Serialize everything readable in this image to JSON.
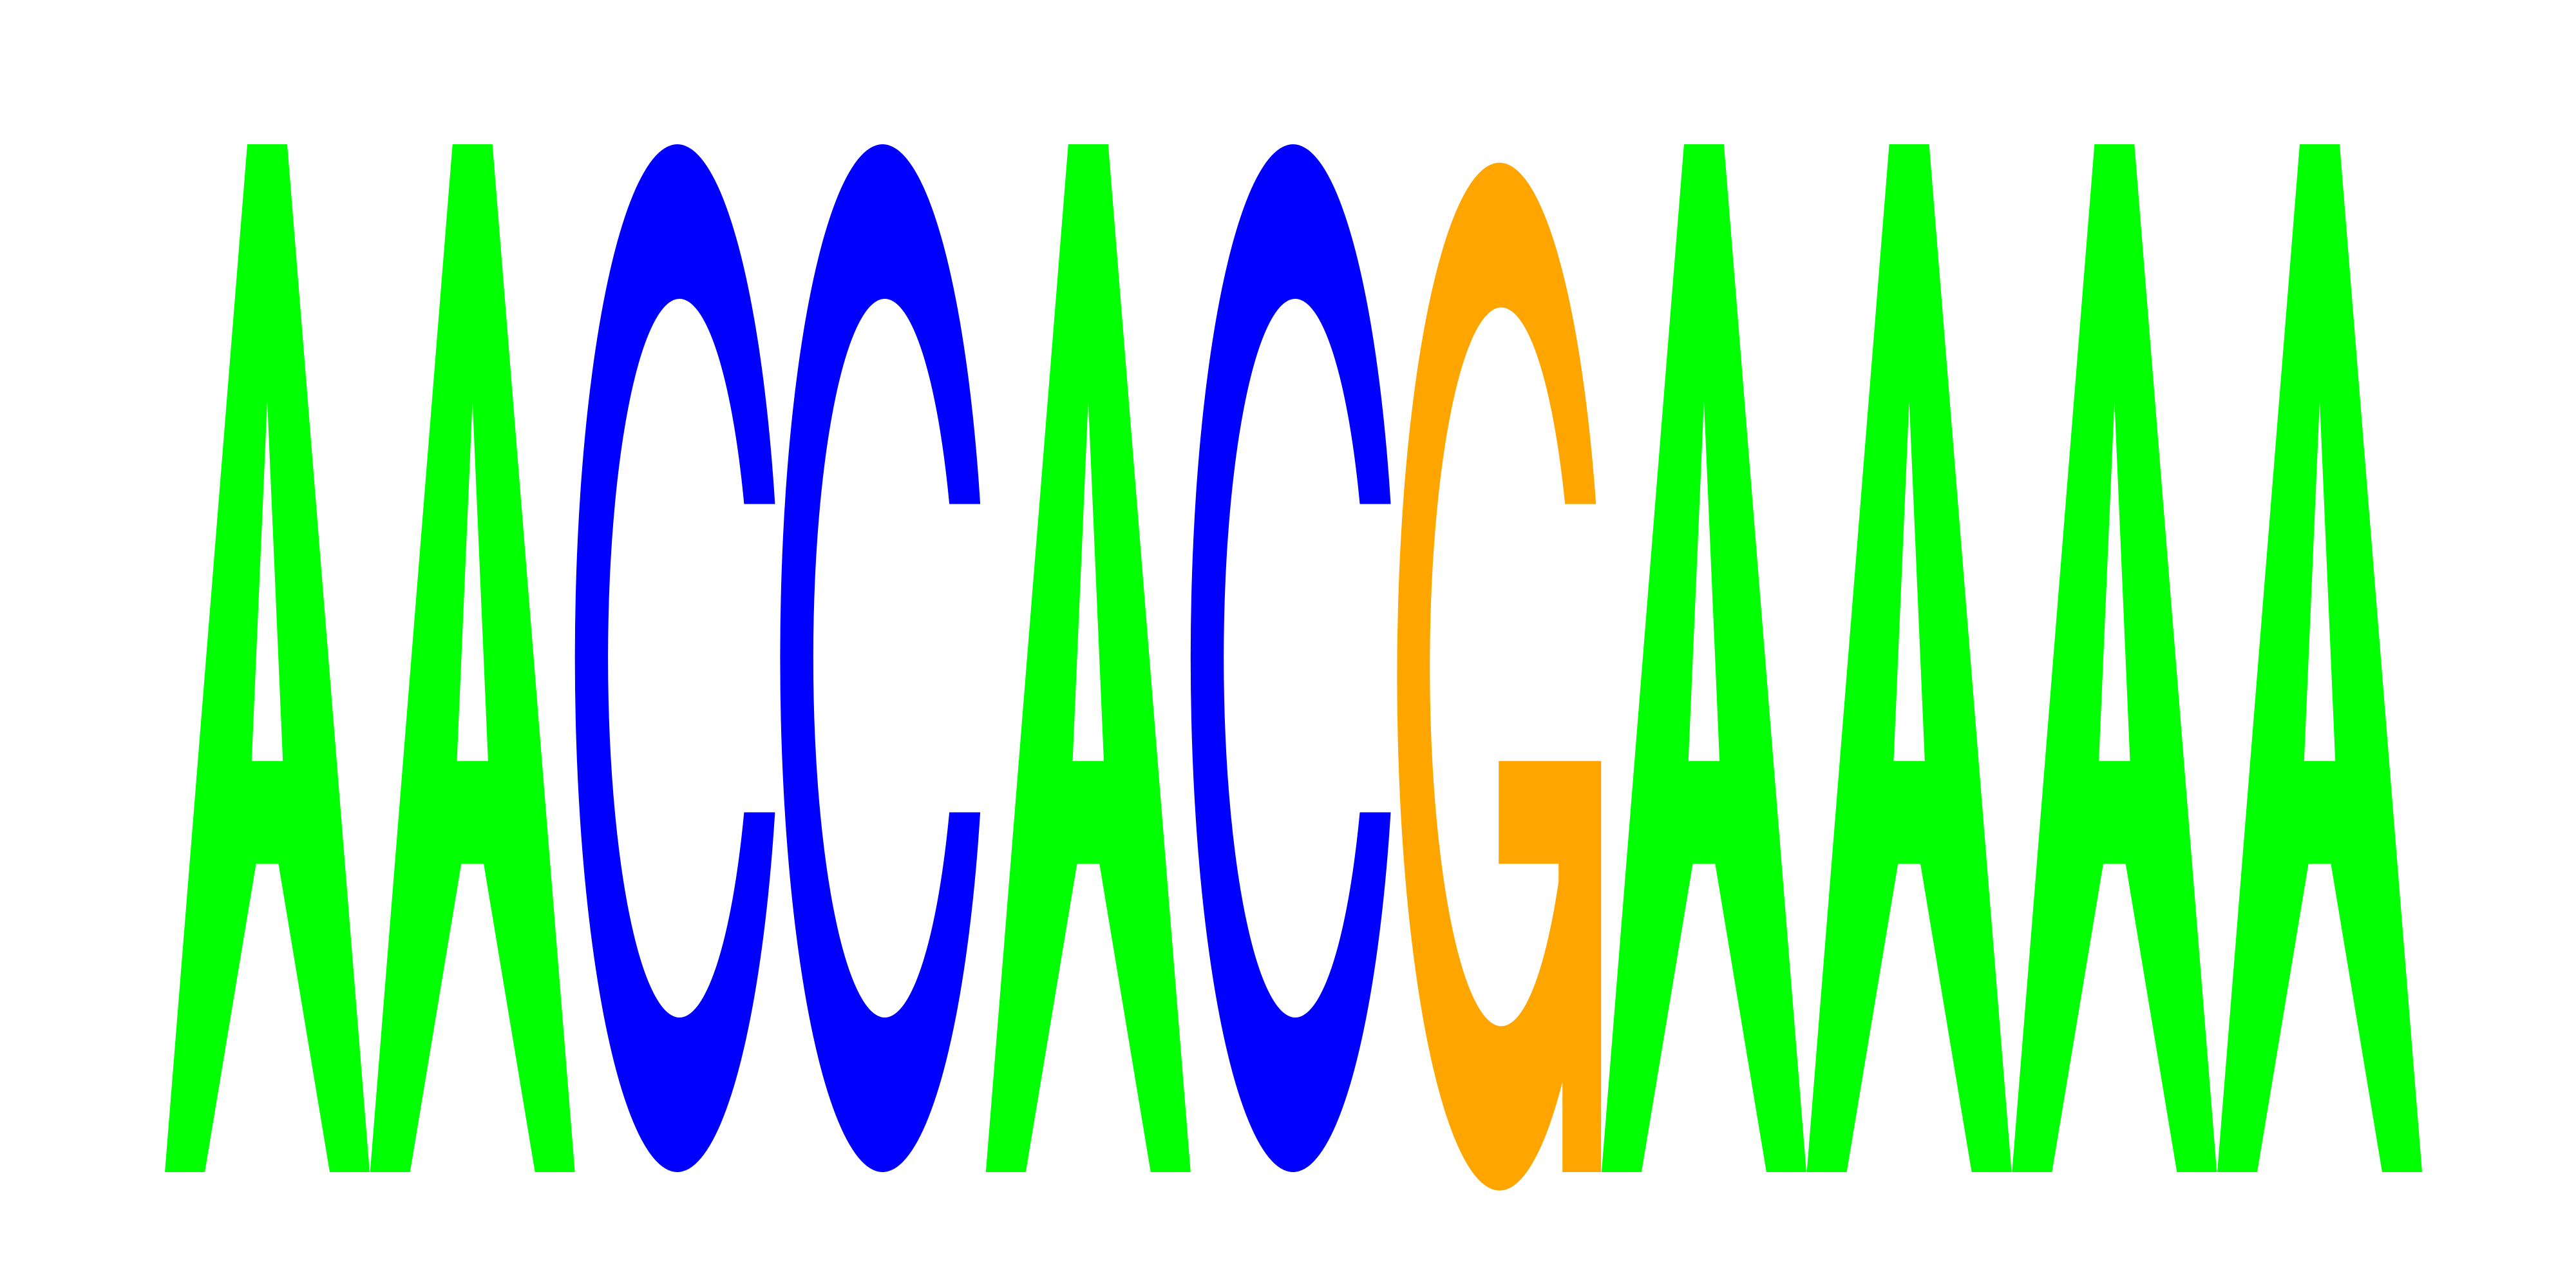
{
  "sequence_logo": {
    "letters": [
      {
        "letter": "A",
        "color": "#00ff00"
      },
      {
        "letter": "A",
        "color": "#00ff00"
      },
      {
        "letter": "C",
        "color": "#0000ff"
      },
      {
        "letter": "C",
        "color": "#0000ff"
      },
      {
        "letter": "A",
        "color": "#00ff00"
      },
      {
        "letter": "C",
        "color": "#0000ff"
      },
      {
        "letter": "G",
        "color": "#ffa500"
      },
      {
        "letter": "A",
        "color": "#00ff00"
      },
      {
        "letter": "A",
        "color": "#00ff00"
      },
      {
        "letter": "A",
        "color": "#00ff00"
      },
      {
        "letter": "A",
        "color": "#00ff00"
      }
    ],
    "colors": {
      "A": "#00ff00",
      "C": "#0000ff",
      "G": "#ffa500"
    }
  }
}
